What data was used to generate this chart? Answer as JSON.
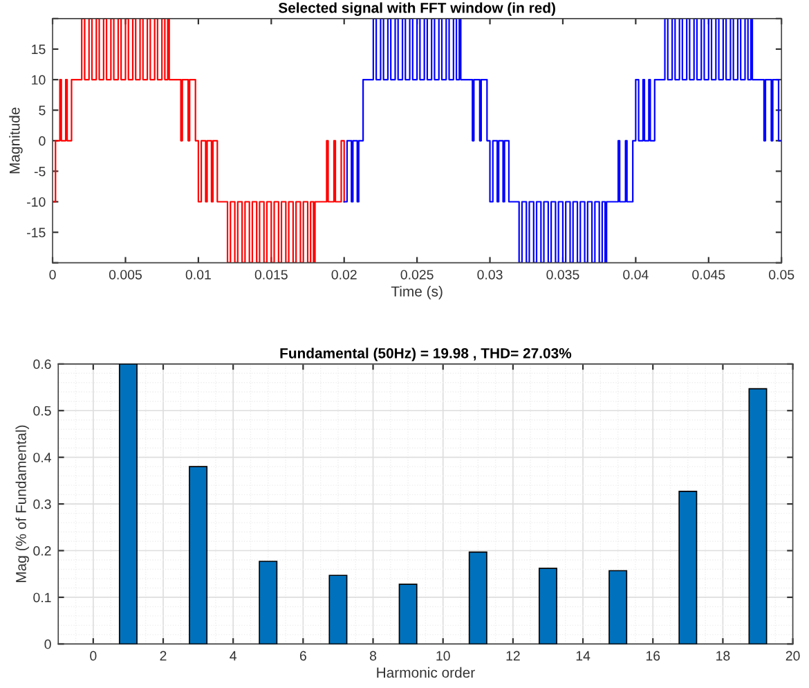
{
  "chart_data": [
    {
      "type": "step",
      "title": "Selected signal with FFT window (in red)",
      "xlabel": "Time (s)",
      "ylabel": "Magnitude",
      "xlim": [
        0,
        0.05
      ],
      "xticks": [
        0,
        0.005,
        0.01,
        0.015,
        0.02,
        0.025,
        0.03,
        0.035,
        0.04,
        0.045,
        0.05
      ],
      "ylim": [
        -20,
        20
      ],
      "yticks": [
        {
          "value": -20,
          "label": null
        },
        -15,
        -10,
        -5,
        0,
        5,
        10,
        15,
        {
          "value": 20,
          "label": null
        }
      ],
      "grid": false,
      "legend": false,
      "series": [
        {
          "color": "#ff0000",
          "x": [
            0,
            0.0002,
            0.0005,
            0.0006,
            0.0009,
            0.001,
            0.0013,
            0.002,
            0.0022,
            0.0025,
            0.0027,
            0.003,
            0.0032,
            0.0035,
            0.0037,
            0.004,
            0.0042,
            0.0045,
            0.0047,
            0.005,
            0.0052,
            0.0055,
            0.0057,
            0.006,
            0.0062,
            0.0065,
            0.0067,
            0.007,
            0.0072,
            0.0075,
            0.0077,
            0.0079,
            0.008,
            0.0088,
            0.0089,
            0.0093,
            0.0094,
            0.0098,
            0.01,
            0.0102,
            0.0105,
            0.0106,
            0.0109,
            0.011,
            0.0113,
            0.012,
            0.0122,
            0.0125,
            0.0127,
            0.013,
            0.0132,
            0.0135,
            0.0137,
            0.014,
            0.0142,
            0.0145,
            0.0147,
            0.015,
            0.0152,
            0.0155,
            0.0157,
            0.016,
            0.0162,
            0.0165,
            0.0167,
            0.017,
            0.0172,
            0.0175,
            0.0177,
            0.0179,
            0.018,
            0.0188,
            0.0189,
            0.0193,
            0.0194,
            0.0198,
            0.02
          ],
          "values": [
            -10,
            0,
            10,
            0,
            10,
            0,
            10,
            20,
            10,
            20,
            10,
            20,
            10,
            20,
            10,
            20,
            10,
            20,
            10,
            20,
            10,
            20,
            10,
            20,
            10,
            20,
            10,
            20,
            10,
            20,
            10,
            20,
            10,
            0,
            10,
            0,
            10,
            0,
            -10,
            0,
            -10,
            0,
            -10,
            0,
            -10,
            -20,
            -10,
            -20,
            -10,
            -20,
            -10,
            -20,
            -10,
            -20,
            -10,
            -20,
            -10,
            -20,
            -10,
            -20,
            -10,
            -20,
            -10,
            -20,
            -10,
            -20,
            -10,
            -20,
            -10,
            -20,
            -10,
            0,
            -10,
            0,
            -10,
            0,
            -10
          ]
        },
        {
          "color": "#0000ff",
          "x": [
            0.02,
            0.0202,
            0.0205,
            0.0206,
            0.0209,
            0.021,
            0.0213,
            0.022,
            0.0222,
            0.0225,
            0.0227,
            0.023,
            0.0232,
            0.0235,
            0.0237,
            0.024,
            0.0242,
            0.0245,
            0.0247,
            0.025,
            0.0252,
            0.0255,
            0.0257,
            0.026,
            0.0262,
            0.0265,
            0.0267,
            0.027,
            0.0272,
            0.0275,
            0.0277,
            0.0279,
            0.028,
            0.0288,
            0.0289,
            0.0293,
            0.0294,
            0.0298,
            0.03,
            0.0302,
            0.0305,
            0.0306,
            0.0309,
            0.031,
            0.0313,
            0.032,
            0.0322,
            0.0325,
            0.0327,
            0.033,
            0.0332,
            0.0335,
            0.0337,
            0.034,
            0.0342,
            0.0345,
            0.0347,
            0.035,
            0.0352,
            0.0355,
            0.0357,
            0.036,
            0.0362,
            0.0365,
            0.0367,
            0.037,
            0.0372,
            0.0375,
            0.0377,
            0.0379,
            0.038,
            0.0388,
            0.0389,
            0.0393,
            0.0394,
            0.0398,
            0.04,
            0.0402,
            0.0405,
            0.0406,
            0.0409,
            0.041,
            0.0413,
            0.042,
            0.0422,
            0.0425,
            0.0427,
            0.043,
            0.0432,
            0.0435,
            0.0437,
            0.044,
            0.0442,
            0.0445,
            0.0447,
            0.045,
            0.0452,
            0.0455,
            0.0457,
            0.046,
            0.0462,
            0.0465,
            0.0467,
            0.047,
            0.0472,
            0.0475,
            0.0477,
            0.0479,
            0.048,
            0.0488,
            0.0489,
            0.0493,
            0.0494,
            0.0498,
            0.05
          ],
          "values": [
            -10,
            0,
            -10,
            0,
            -10,
            0,
            10,
            20,
            10,
            20,
            10,
            20,
            10,
            20,
            10,
            20,
            10,
            20,
            10,
            20,
            10,
            20,
            10,
            20,
            10,
            20,
            10,
            20,
            10,
            20,
            10,
            20,
            10,
            0,
            10,
            0,
            10,
            0,
            -10,
            0,
            -10,
            0,
            -10,
            0,
            -10,
            -20,
            -10,
            -20,
            -10,
            -20,
            -10,
            -20,
            -10,
            -20,
            -10,
            -20,
            -10,
            -20,
            -10,
            -20,
            -10,
            -20,
            -10,
            -20,
            -10,
            -20,
            -10,
            -20,
            -10,
            -20,
            -10,
            0,
            -10,
            0,
            -10,
            0,
            10,
            0,
            10,
            0,
            10,
            0,
            10,
            20,
            10,
            20,
            10,
            20,
            10,
            20,
            10,
            20,
            10,
            20,
            10,
            20,
            10,
            20,
            10,
            20,
            10,
            20,
            10,
            20,
            10,
            20,
            10,
            20,
            10,
            0,
            10,
            0,
            10,
            0,
            0
          ]
        }
      ]
    },
    {
      "type": "bar",
      "title": "Fundamental (50Hz) = 19.98 , THD= 27.03%",
      "xlabel": "Harmonic order",
      "ylabel": "Mag (% of Fundamental)",
      "x": [
        1,
        3,
        5,
        7,
        9,
        11,
        13,
        15,
        17,
        19
      ],
      "values": [
        0.6,
        0.38,
        0.177,
        0.147,
        0.128,
        0.197,
        0.162,
        0.157,
        0.327,
        0.547
      ],
      "color": "#0072bd",
      "xlim": [
        -1,
        20
      ],
      "xticks": [
        0,
        2,
        4,
        6,
        8,
        10,
        12,
        14,
        16,
        18,
        20
      ],
      "ylim": [
        0,
        0.6
      ],
      "yticks": [
        0,
        0.1,
        0.2,
        0.3,
        0.4,
        0.5,
        0.6
      ],
      "grid": true,
      "legend": false
    }
  ]
}
